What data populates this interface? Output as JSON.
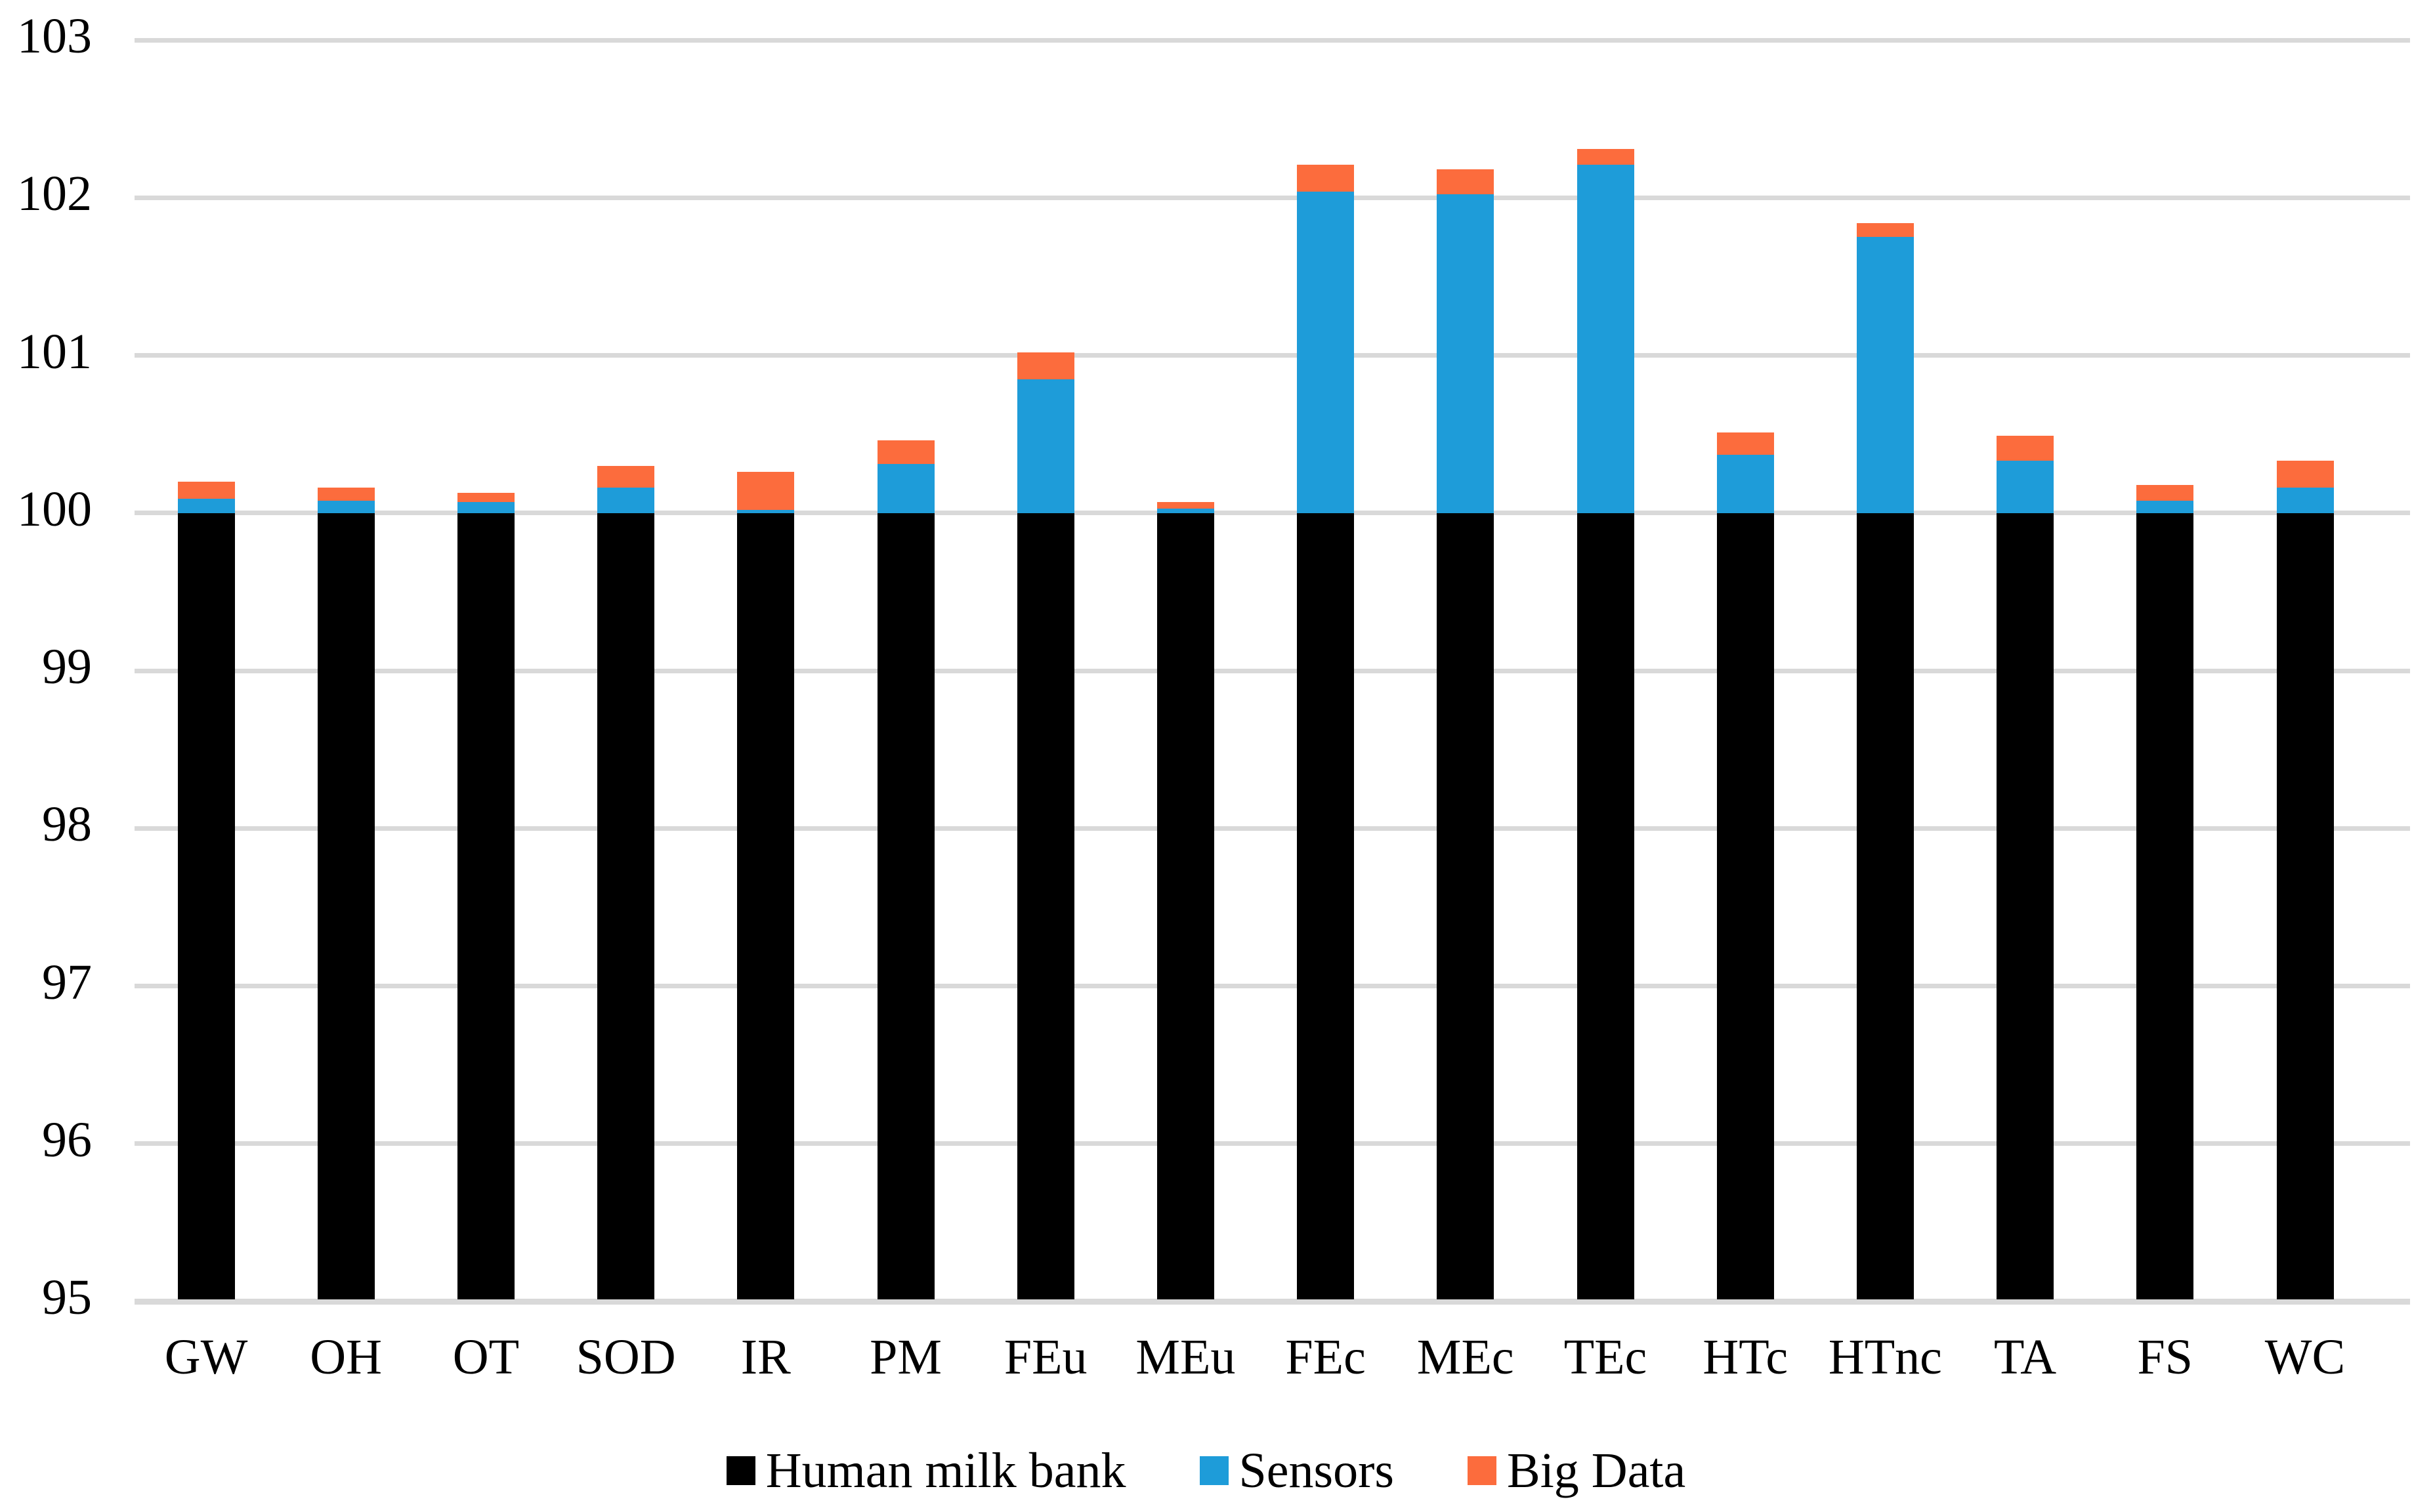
{
  "chart_data": {
    "type": "bar",
    "stacked": true,
    "title": "",
    "categories": [
      "GW",
      "OH",
      "OT",
      "SOD",
      "IR",
      "PM",
      "FEu",
      "MEu",
      "FEc",
      "MEc",
      "TEc",
      "HTc",
      "HTnc",
      "TA",
      "FS",
      "WC"
    ],
    "series": [
      {
        "name": "Human milk bank",
        "color": "#000000",
        "values": [
          100,
          100,
          100,
          100,
          100,
          100,
          100,
          100,
          100,
          100,
          100,
          100,
          100,
          100,
          100,
          100
        ]
      },
      {
        "name": "Sensors",
        "color": "#1e9cd9",
        "values": [
          0.09,
          0.08,
          0.07,
          0.16,
          0.02,
          0.31,
          0.85,
          0.03,
          2.04,
          2.02,
          2.21,
          0.37,
          1.75,
          0.33,
          0.08,
          0.16
        ]
      },
      {
        "name": "Big Data",
        "color": "#fc6c3d",
        "values": [
          0.11,
          0.08,
          0.06,
          0.14,
          0.24,
          0.15,
          0.17,
          0.04,
          0.17,
          0.16,
          0.1,
          0.14,
          0.09,
          0.16,
          0.1,
          0.17
        ]
      }
    ],
    "stack_totals": [
      100.2,
      100.16,
      100.13,
      100.3,
      100.26,
      100.46,
      101.02,
      100.07,
      102.21,
      102.18,
      102.31,
      100.51,
      101.84,
      100.49,
      100.18,
      100.33
    ],
    "xlabel": "",
    "ylabel": "",
    "ylim": [
      95,
      103
    ],
    "yticks": [
      "95",
      "96",
      "97",
      "98",
      "99",
      "100",
      "101",
      "102",
      "103"
    ],
    "grid": "horizontal",
    "gridline_color": "#d9d9d9",
    "legend_position": "bottom",
    "legend_entries": [
      "Human milk bank",
      "Sensors",
      "Big Data"
    ]
  }
}
